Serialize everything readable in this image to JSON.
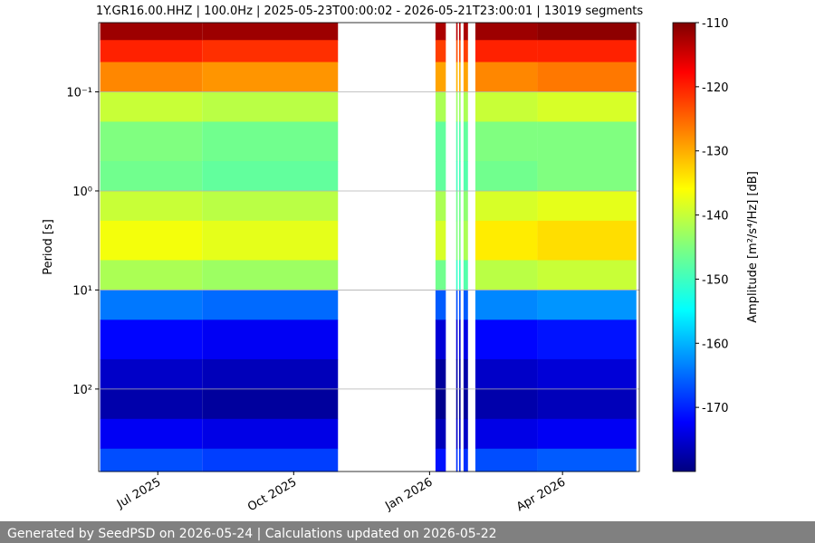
{
  "chart_data": {
    "type": "spectrogram",
    "title": "1Y.GR16.00.HHZ | 100.0Hz | 2025-05-23T00:00:02 - 2026-05-21T23:00:01 | 13019 segments",
    "y_label": "Period [s]",
    "colorbar_label": "Amplitude [m²/s⁴/Hz] [dB]",
    "footer": "Generated by SeedPSD on 2026-05-24 | Calculations updated on 2026-05-22",
    "xlim": [
      "2025-05-22",
      "2026-05-23"
    ],
    "xticks": [
      {
        "value": "2025-07-01",
        "label": "Jul 2025"
      },
      {
        "value": "2025-10-01",
        "label": "Oct 2025"
      },
      {
        "value": "2026-01-01",
        "label": "Jan 2026"
      },
      {
        "value": "2026-04-01",
        "label": "Apr 2026"
      }
    ],
    "ylim": [
      0.02,
      680
    ],
    "yscale": "log",
    "y_inverted": true,
    "yticks": [
      {
        "value": 0.1,
        "label": "10⁻¹"
      },
      {
        "value": 1,
        "label": "10⁰"
      },
      {
        "value": 10,
        "label": "10¹"
      },
      {
        "value": 100,
        "label": "10²"
      }
    ],
    "grid": true,
    "colormap": "jet",
    "zlim": [
      -180,
      -110
    ],
    "zticks": [
      -110,
      -120,
      -130,
      -140,
      -150,
      -160,
      -170
    ],
    "period_edges": [
      0.02,
      0.03,
      0.05,
      0.1,
      0.2,
      0.5,
      1,
      2,
      5,
      10,
      20,
      50,
      100,
      200,
      400,
      680
    ],
    "blocks": [
      {
        "start": "2025-05-23",
        "end": "2025-07-31",
        "values": [
          -112,
          -121,
          -128,
          -140,
          -145,
          -146,
          -140,
          -137,
          -142,
          -163,
          -171,
          -175,
          -177,
          -172,
          -166
        ]
      },
      {
        "start": "2025-07-31",
        "end": "2025-10-31",
        "values": [
          -112,
          -122,
          -129,
          -141,
          -146,
          -147,
          -141,
          -138,
          -143,
          -164,
          -172,
          -176,
          -178,
          -173,
          -167
        ]
      },
      {
        "start": "2026-01-05",
        "end": "2026-01-12",
        "values": [
          -113,
          -123,
          -130,
          -142,
          -147,
          -147,
          -142,
          -139,
          -146,
          -165,
          -174,
          -178,
          -179,
          -176,
          -170
        ]
      },
      {
        "start": "2026-01-19",
        "end": "2026-01-20",
        "values": [
          -114,
          -124,
          -131,
          -143,
          -148,
          -149,
          -146,
          -145,
          -150,
          -166,
          -174,
          -177,
          -178,
          -175,
          -168
        ]
      },
      {
        "start": "2026-01-21",
        "end": "2026-01-22",
        "values": [
          -114,
          -124,
          -131,
          -143,
          -148,
          -149,
          -146,
          -145,
          -150,
          -166,
          -174,
          -177,
          -178,
          -175,
          -168
        ]
      },
      {
        "start": "2026-01-24",
        "end": "2026-01-27",
        "values": [
          -113,
          -123,
          -130,
          -142,
          -147,
          -148,
          -144,
          -142,
          -148,
          -165,
          -173,
          -177,
          -178,
          -175,
          -168
        ]
      },
      {
        "start": "2026-02-01",
        "end": "2026-03-15",
        "values": [
          -112,
          -121,
          -128,
          -140,
          -145,
          -146,
          -139,
          -135,
          -141,
          -162,
          -171,
          -175,
          -177,
          -173,
          -166
        ]
      },
      {
        "start": "2026-03-15",
        "end": "2026-05-21",
        "values": [
          -111,
          -121,
          -127,
          -139,
          -145,
          -145,
          -138,
          -134,
          -140,
          -161,
          -170,
          -174,
          -176,
          -172,
          -165
        ]
      }
    ]
  }
}
